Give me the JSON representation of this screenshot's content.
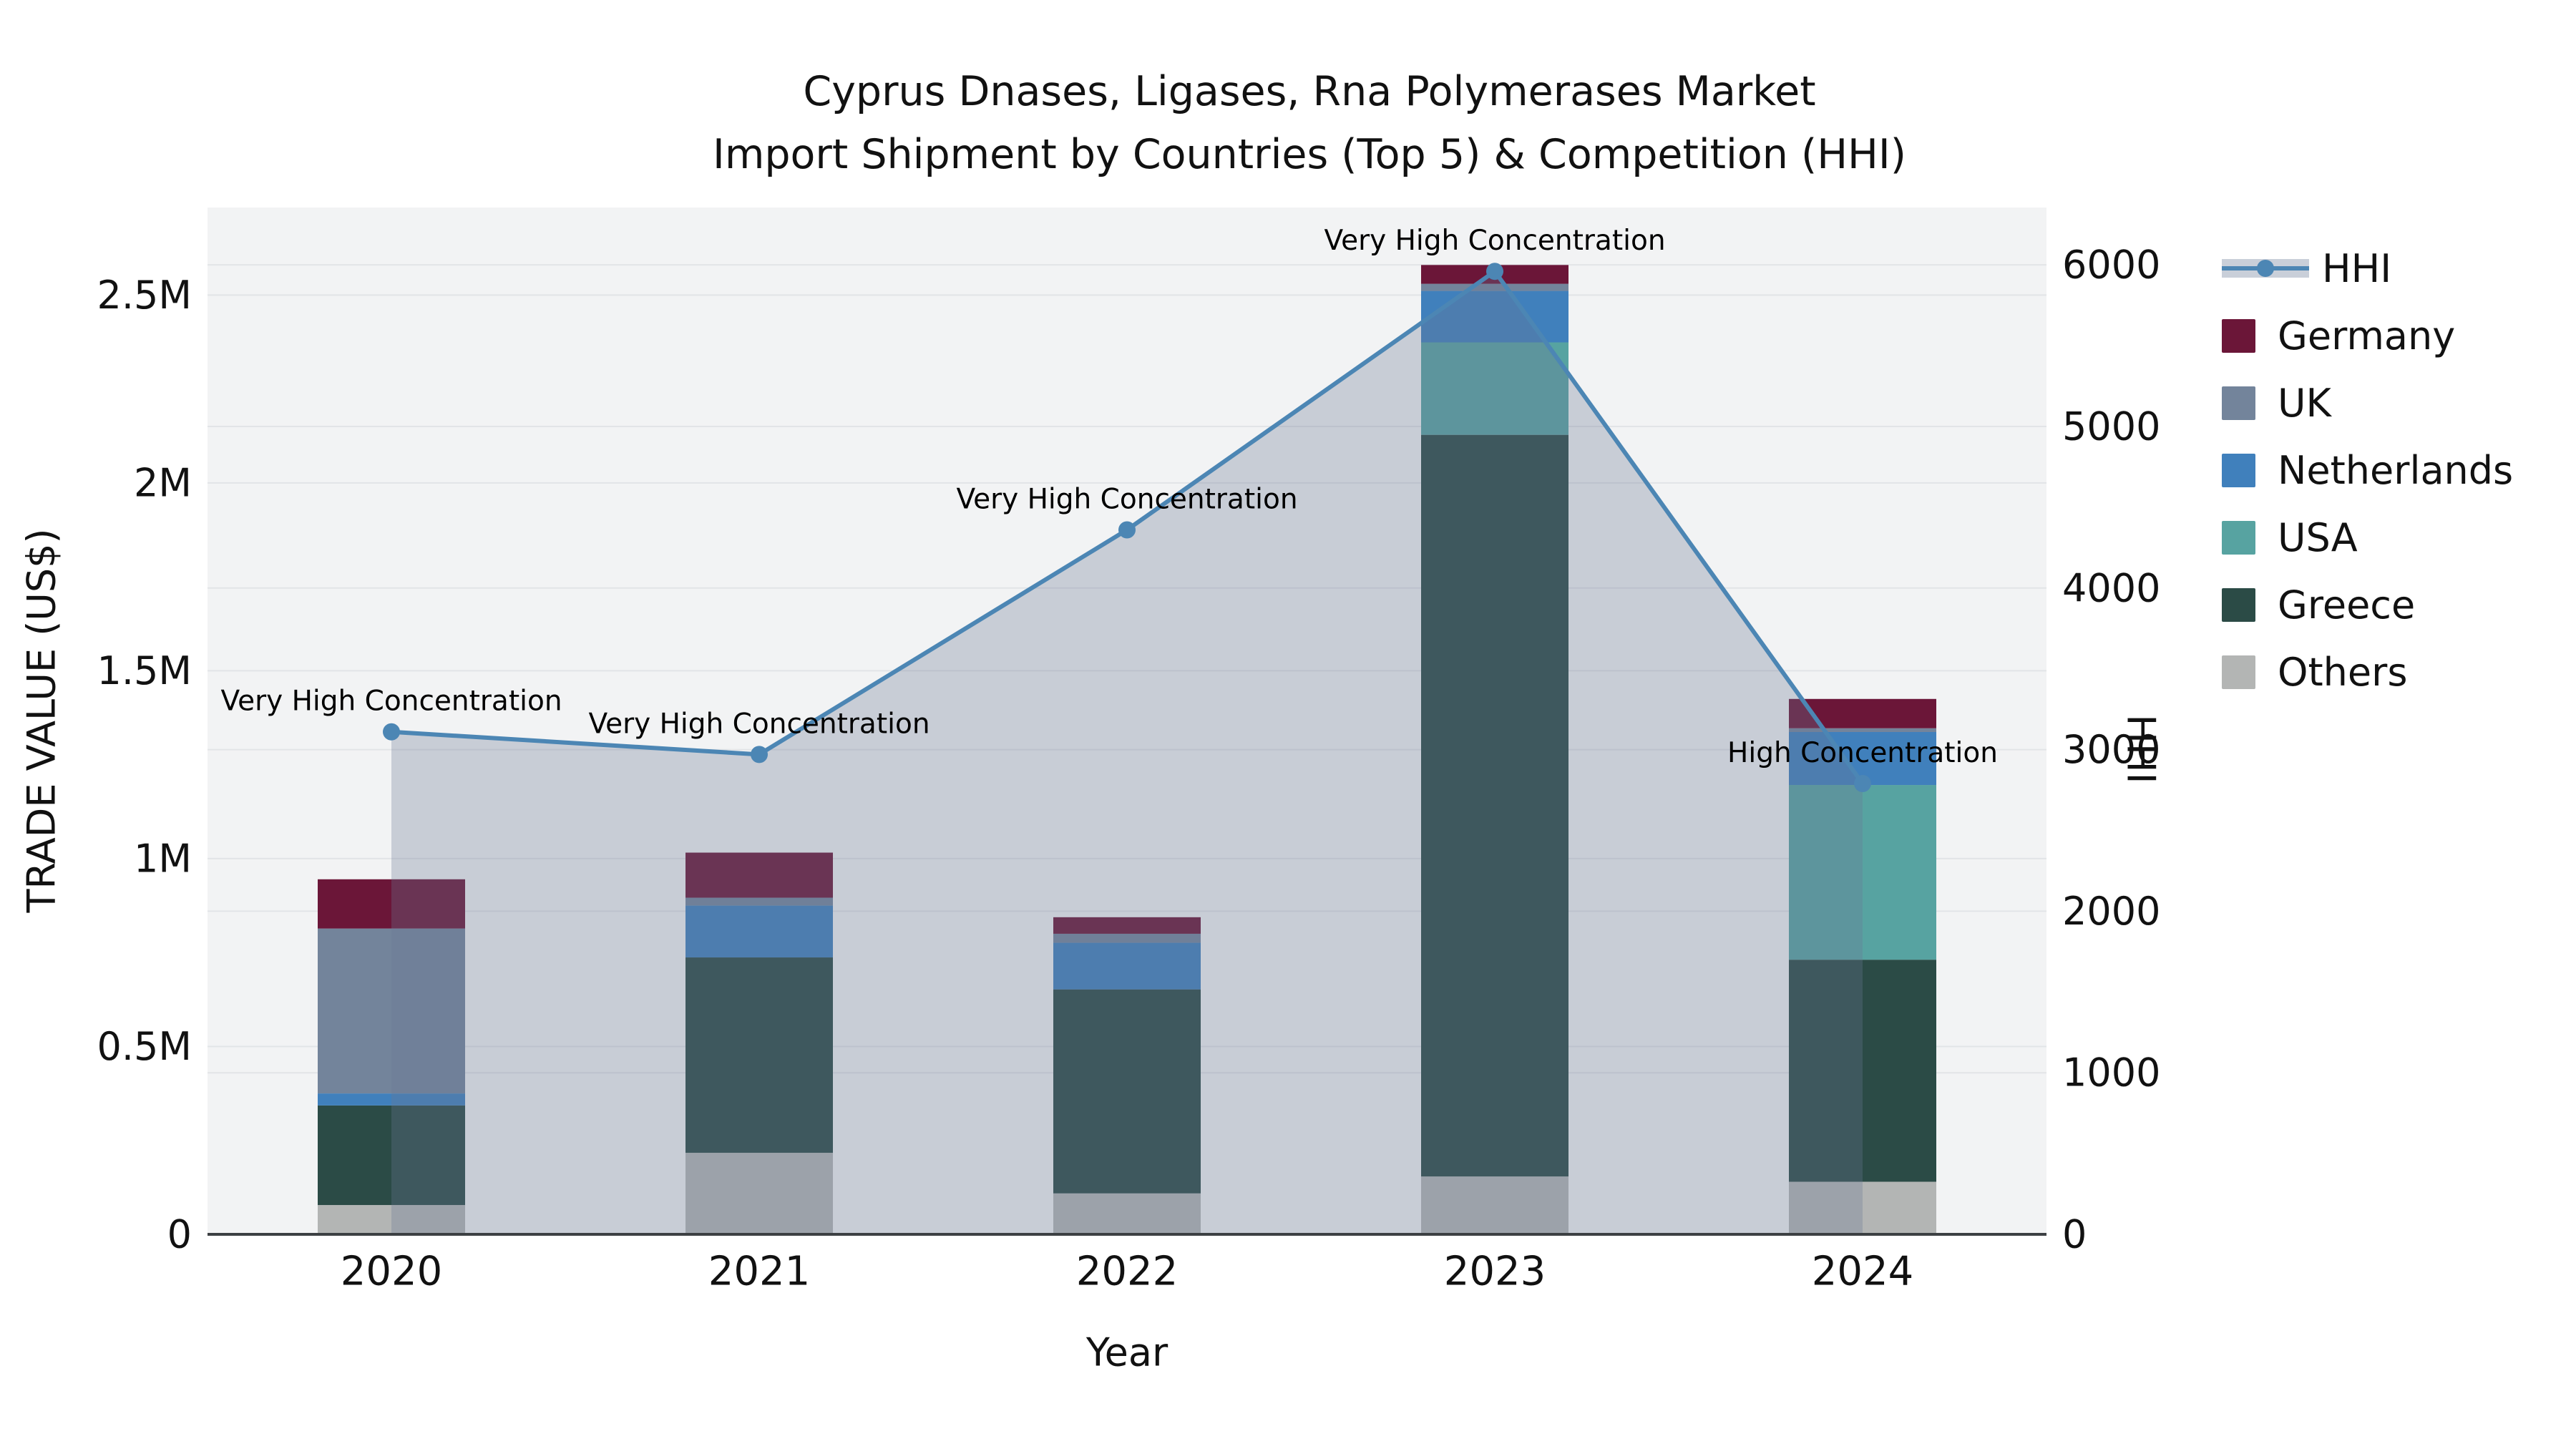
{
  "title": {
    "line1": "Cyprus Dnases, Ligases, Rna Polymerases Market",
    "line2": "Import Shipment by Countries (Top 5) & Competition (HHI)"
  },
  "axes": {
    "x_title": "Year",
    "y_left_title": "TRADE VALUE (US$)",
    "y_right_title": "HHI"
  },
  "colors": {
    "page_bg": "#ffffff",
    "plot_bg": "#f2f3f4",
    "grid": "#e2e4e7",
    "axis_line": "#3c4043",
    "text": "#111111",
    "hhi_line": "#4c86b4",
    "hhi_area": "rgba(106,120,147,0.31)"
  },
  "chart_data": {
    "type": "combo: stacked bar (left axis) + line with area (right axis)",
    "categories": [
      "2020",
      "2021",
      "2022",
      "2023",
      "2024"
    ],
    "bar_value_unit": "US$",
    "series": [
      {
        "name": "Others",
        "color": "#b3b5b4",
        "values": [
          78000,
          217000,
          109000,
          154000,
          140000
        ]
      },
      {
        "name": "Greece",
        "color": "#2b4b46",
        "values": [
          265000,
          520000,
          543000,
          1974000,
          591000
        ]
      },
      {
        "name": "USA",
        "color": "#57a3a1",
        "values": [
          0,
          0,
          0,
          246000,
          465000
        ]
      },
      {
        "name": "Netherlands",
        "color": "#4080bc",
        "values": [
          32000,
          138000,
          124000,
          137000,
          141000
        ]
      },
      {
        "name": "UK",
        "color": "#73849b",
        "values": [
          439000,
          21000,
          24000,
          19000,
          10000
        ]
      },
      {
        "name": "Germany",
        "color": "#6b1638",
        "values": [
          131000,
          120000,
          44000,
          50000,
          78000
        ]
      }
    ],
    "bar_totals": [
      945000,
      1016000,
      844000,
      2580000,
      1425000
    ],
    "line_series": {
      "name": "HHI",
      "values": [
        3110,
        2970,
        4360,
        5960,
        2790
      ]
    },
    "annotations": [
      {
        "category": "2020",
        "label": "Very High Concentration"
      },
      {
        "category": "2021",
        "label": "Very High Concentration"
      },
      {
        "category": "2022",
        "label": "Very High Concentration"
      },
      {
        "category": "2023",
        "label": "Very High Concentration"
      },
      {
        "category": "2024",
        "label": "High Concentration"
      }
    ],
    "ylim_left": [
      0,
      2733000
    ],
    "ylim_right": [
      0,
      6355
    ],
    "y_left_ticks": [
      {
        "value": 0,
        "label": "0"
      },
      {
        "value": 500000,
        "label": "0.5M"
      },
      {
        "value": 1000000,
        "label": "1M"
      },
      {
        "value": 1500000,
        "label": "1.5M"
      },
      {
        "value": 2000000,
        "label": "2M"
      },
      {
        "value": 2500000,
        "label": "2.5M"
      }
    ],
    "y_right_ticks": [
      {
        "value": 0,
        "label": "0"
      },
      {
        "value": 1000,
        "label": "1000"
      },
      {
        "value": 2000,
        "label": "2000"
      },
      {
        "value": 3000,
        "label": "3000"
      },
      {
        "value": 4000,
        "label": "4000"
      },
      {
        "value": 5000,
        "label": "5000"
      },
      {
        "value": 6000,
        "label": "6000"
      }
    ],
    "grid": "on",
    "legend_position": "right"
  },
  "legend": {
    "items": [
      {
        "label": "HHI",
        "type": "line"
      },
      {
        "label": "Germany",
        "type": "swatch",
        "color": "#6b1638"
      },
      {
        "label": "UK",
        "type": "swatch",
        "color": "#73849b"
      },
      {
        "label": "Netherlands",
        "type": "swatch",
        "color": "#4080bc"
      },
      {
        "label": "USA",
        "type": "swatch",
        "color": "#57a3a1"
      },
      {
        "label": "Greece",
        "type": "swatch",
        "color": "#2b4b46"
      },
      {
        "label": "Others",
        "type": "swatch",
        "color": "#b3b5b4"
      }
    ]
  }
}
